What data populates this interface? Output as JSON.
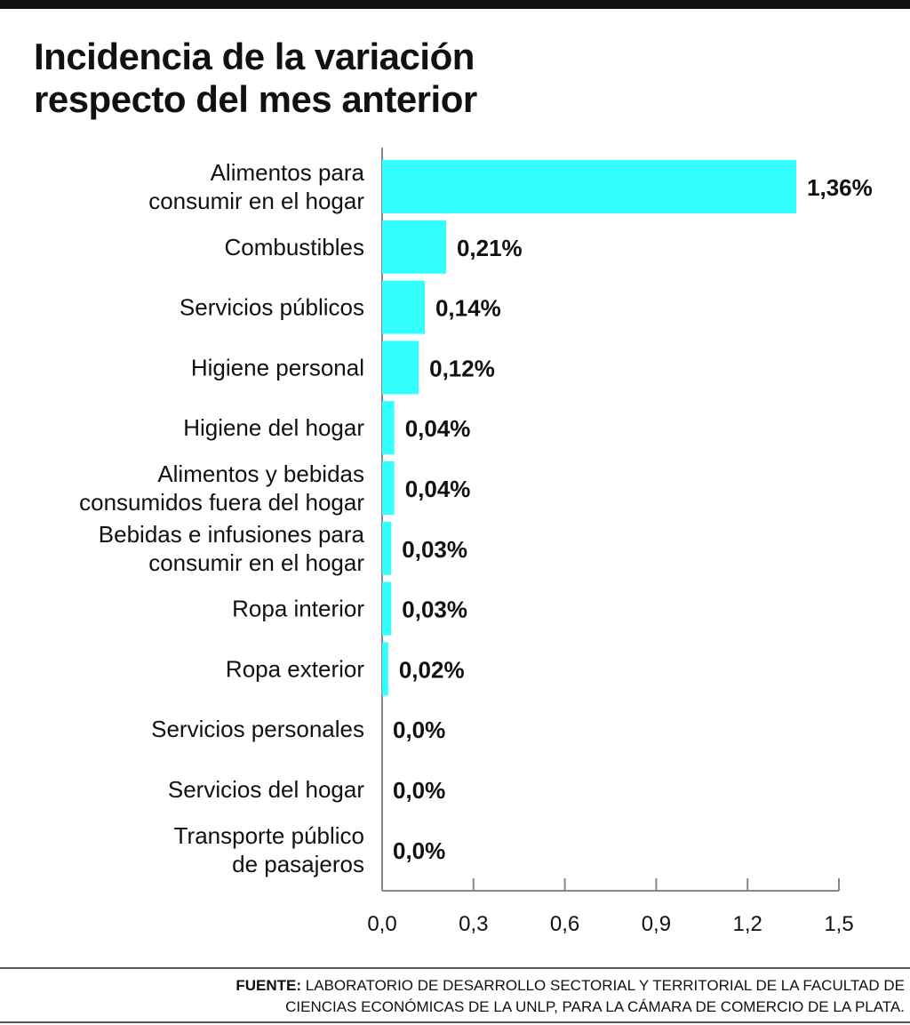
{
  "title_lines": [
    "Incidencia de la variación",
    "respecto del mes anterior"
  ],
  "source": {
    "label": "FUENTE:",
    "line1": "LABORATORIO DE DESARROLLO SECTORIAL Y TERRITORIAL DE LA FACULTAD DE",
    "line2": "CIENCIAS ECONÓMICAS DE LA UNLP, PARA LA CÁMARA DE COMERCIO DE LA PLATA."
  },
  "colors": {
    "bar": "#33ffff",
    "text": "#111111",
    "axis": "#888888"
  },
  "chart_data": {
    "type": "bar",
    "orientation": "horizontal",
    "title": "Incidencia de la variación respecto del mes anterior",
    "categories": [
      [
        "Alimentos para",
        "consumir en el hogar"
      ],
      [
        "Combustibles"
      ],
      [
        "Servicios públicos"
      ],
      [
        "Higiene personal"
      ],
      [
        "Higiene del hogar"
      ],
      [
        "Alimentos y bebidas",
        "consumidos fuera del hogar"
      ],
      [
        "Bebidas e infusiones para",
        "consumir en el hogar"
      ],
      [
        "Ropa interior"
      ],
      [
        "Ropa exterior"
      ],
      [
        "Servicios personales"
      ],
      [
        "Servicios del hogar"
      ],
      [
        "Transporte público",
        "de pasajeros"
      ]
    ],
    "values": [
      1.36,
      0.21,
      0.14,
      0.12,
      0.04,
      0.04,
      0.03,
      0.03,
      0.02,
      0.0,
      0.0,
      0.0
    ],
    "value_labels": [
      "1,36%",
      "0,21%",
      "0,14%",
      "0,12%",
      "0,04%",
      "0,04%",
      "0,03%",
      "0,03%",
      "0,02%",
      "0,0%",
      "0,0%",
      "0,0%"
    ],
    "xlim": [
      0,
      1.5
    ],
    "xticks": [
      0,
      0.3,
      0.6,
      0.9,
      1.2,
      1.5
    ],
    "xtick_labels": [
      "0,0",
      "0,3",
      "0,6",
      "0,9",
      "1,2",
      "1,5"
    ],
    "grid": false,
    "legend": "none"
  }
}
